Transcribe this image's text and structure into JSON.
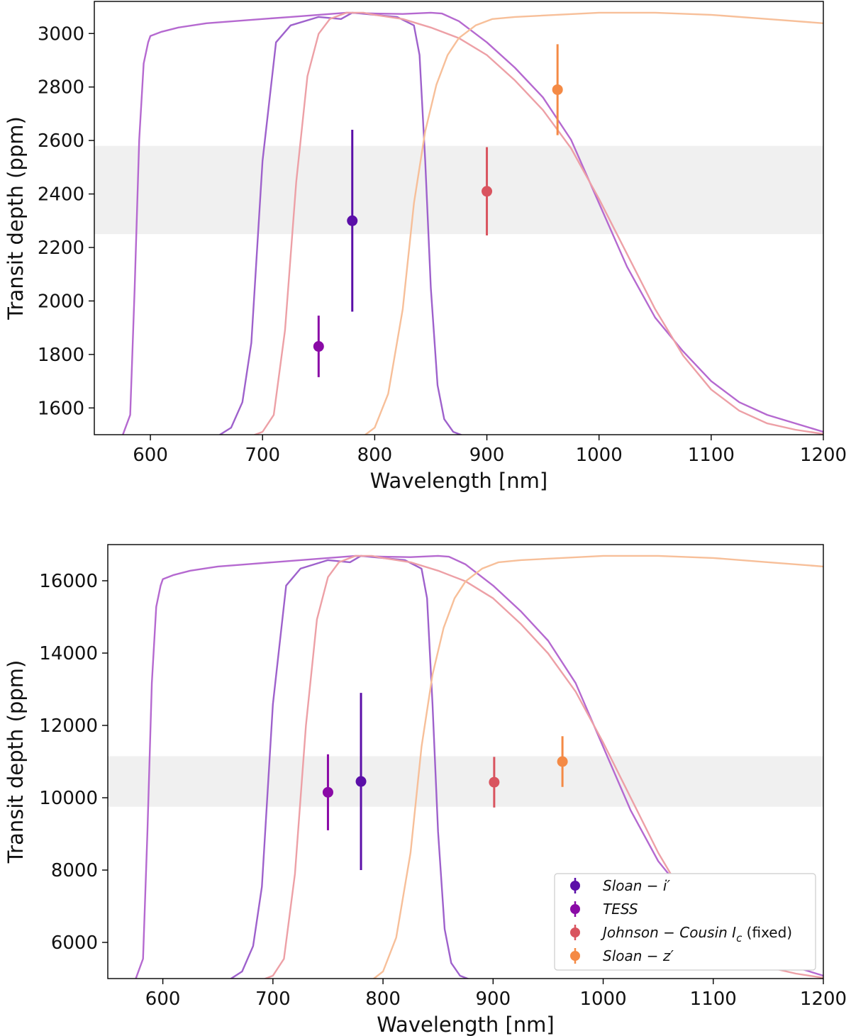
{
  "chart_data": [
    {
      "type": "scatter",
      "title": "",
      "xlabel": "Wavelength [nm]",
      "ylabel": "Transit depth (ppm)",
      "xlim": [
        550,
        1200
      ],
      "ylim": [
        1500,
        3120
      ],
      "xticks": [
        600,
        700,
        800,
        900,
        1000,
        1100,
        1200
      ],
      "yticks": [
        1600,
        1800,
        2000,
        2200,
        2400,
        2600,
        2800,
        3000
      ],
      "band": {
        "low": 2250,
        "high": 2580
      },
      "points": [
        {
          "series": "Sloan - i'",
          "x": 780,
          "y": 2300,
          "err": 340,
          "color": "#5b0fa8"
        },
        {
          "series": "TESS",
          "x": 750,
          "y": 1830,
          "err": 115,
          "color": "#8a0aa6"
        },
        {
          "series": "Johnson - Cousin Ic (fixed)",
          "x": 900,
          "y": 2410,
          "err": 165,
          "color": "#d9545f"
        },
        {
          "series": "Sloan - z'",
          "x": 963,
          "y": 2790,
          "err": 170,
          "color": "#f48a45"
        }
      ]
    },
    {
      "type": "scatter",
      "title": "",
      "xlabel": "Wavelength [nm]",
      "ylabel": "Transit depth (ppm)",
      "xlim": [
        550,
        1200
      ],
      "ylim": [
        5000,
        17000
      ],
      "xticks": [
        600,
        700,
        800,
        900,
        1000,
        1100,
        1200
      ],
      "yticks": [
        6000,
        8000,
        10000,
        12000,
        14000,
        16000
      ],
      "band": {
        "low": 9750,
        "high": 11150
      },
      "points": [
        {
          "series": "Sloan - i'",
          "x": 780,
          "y": 10450,
          "err": 2450,
          "color": "#5b0fa8"
        },
        {
          "series": "TESS",
          "x": 750,
          "y": 10150,
          "err": 1050,
          "color": "#8a0aa6"
        },
        {
          "series": "Johnson - Cousin Ic (fixed)",
          "x": 901,
          "y": 10430,
          "err": 700,
          "color": "#d9545f"
        },
        {
          "series": "Sloan - z'",
          "x": 963,
          "y": 11000,
          "err": 700,
          "color": "#f48a45"
        }
      ],
      "legend": {
        "placement": "lower-right",
        "entries": [
          {
            "label": "Sloan − i′",
            "color": "#5b0fa8"
          },
          {
            "label": "TESS",
            "color": "#8a0aa6"
          },
          {
            "label": "Johnson − Cousin I",
            "label_sub": "c",
            "label_suffix": " (fixed)",
            "color": "#d9545f"
          },
          {
            "label": "Sloan − z′",
            "color": "#f48a45"
          }
        ]
      }
    }
  ],
  "filter_curves": [
    {
      "name": "TESS",
      "color": "#b569d0",
      "x": [
        555,
        575,
        582,
        586,
        590,
        594,
        598,
        600,
        610,
        625,
        650,
        675,
        700,
        725,
        750,
        775,
        800,
        825,
        850,
        860,
        875,
        900,
        925,
        950,
        975,
        1000,
        1025,
        1050,
        1075,
        1100,
        1125,
        1150,
        1200
      ],
      "y": [
        0,
        0,
        0.05,
        0.35,
        0.7,
        0.88,
        0.93,
        0.945,
        0.955,
        0.965,
        0.975,
        0.98,
        0.985,
        0.99,
        0.995,
        1.0,
        0.998,
        0.997,
        1.0,
        0.998,
        0.98,
        0.93,
        0.87,
        0.8,
        0.7,
        0.55,
        0.4,
        0.28,
        0.2,
        0.13,
        0.08,
        0.05,
        0.01
      ]
    },
    {
      "name": "Sloan - i'",
      "color": "#9e61cc",
      "x": [
        555,
        660,
        672,
        682,
        690,
        700,
        712,
        725,
        750,
        770,
        780,
        800,
        820,
        835,
        840,
        845,
        850,
        856,
        862,
        870,
        880,
        900,
        1200
      ],
      "y": [
        0,
        0,
        0.02,
        0.08,
        0.22,
        0.65,
        0.93,
        0.97,
        0.99,
        0.985,
        1.0,
        0.995,
        0.99,
        0.97,
        0.9,
        0.65,
        0.35,
        0.12,
        0.04,
        0.01,
        0,
        0,
        0
      ]
    },
    {
      "name": "Johnson - Cousin Ic",
      "color": "#eda0a6",
      "x": [
        555,
        690,
        700,
        710,
        720,
        730,
        740,
        750,
        760,
        775,
        790,
        800,
        825,
        850,
        875,
        900,
        925,
        950,
        975,
        1000,
        1025,
        1050,
        1075,
        1100,
        1125,
        1150,
        1175,
        1200
      ],
      "y": [
        0,
        0,
        0.01,
        0.05,
        0.25,
        0.6,
        0.85,
        0.95,
        0.985,
        1.0,
        1.0,
        0.995,
        0.985,
        0.965,
        0.94,
        0.9,
        0.84,
        0.77,
        0.68,
        0.56,
        0.43,
        0.3,
        0.19,
        0.11,
        0.06,
        0.03,
        0.015,
        0.005
      ]
    },
    {
      "name": "Sloan - z'",
      "color": "#f7bf99",
      "x": [
        555,
        790,
        800,
        812,
        825,
        835,
        845,
        855,
        865,
        875,
        890,
        905,
        925,
        1000,
        1050,
        1100,
        1150,
        1200
      ],
      "y": [
        0,
        0,
        0.02,
        0.1,
        0.3,
        0.55,
        0.72,
        0.83,
        0.9,
        0.94,
        0.97,
        0.985,
        0.99,
        1.0,
        1.0,
        0.995,
        0.985,
        0.975
      ]
    }
  ]
}
